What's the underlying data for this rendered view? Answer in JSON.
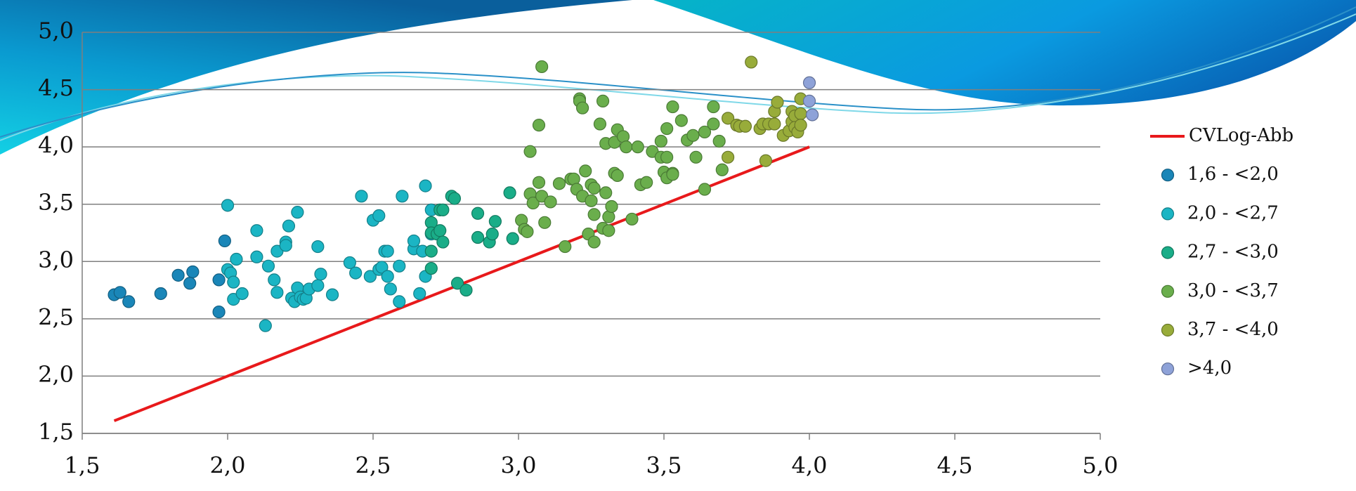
{
  "chart_data": {
    "type": "scatter",
    "xlim": [
      1.5,
      5.0
    ],
    "ylim": [
      1.5,
      5.0
    ],
    "xticks": [
      {
        "value": 1.5,
        "label": "1,5"
      },
      {
        "value": 2.0,
        "label": "2,0"
      },
      {
        "value": 2.5,
        "label": "2,5"
      },
      {
        "value": 3.0,
        "label": "3,0"
      },
      {
        "value": 3.5,
        "label": "3,5"
      },
      {
        "value": 4.0,
        "label": "4,0"
      },
      {
        "value": 4.5,
        "label": "4,5"
      },
      {
        "value": 5.0,
        "label": "5,0"
      }
    ],
    "yticks": [
      {
        "value": 1.5,
        "label": "1,5"
      },
      {
        "value": 2.0,
        "label": "2,0"
      },
      {
        "value": 2.5,
        "label": "2,5"
      },
      {
        "value": 3.0,
        "label": "3,0"
      },
      {
        "value": 3.5,
        "label": "3,5"
      },
      {
        "value": 4.0,
        "label": "4,0"
      },
      {
        "value": 4.5,
        "label": "4,5"
      },
      {
        "value": 5.0,
        "label": "5,0"
      }
    ],
    "grid": true,
    "legend": "right",
    "series": [
      {
        "name": "CVLog-Abb",
        "type": "line",
        "color": "#e8191b",
        "x": [
          1.61,
          4.0
        ],
        "values": [
          1.61,
          4.0
        ]
      },
      {
        "name": "1,6 - <2,0",
        "color": "#1a86b8",
        "x": [
          1.61,
          1.63,
          1.66,
          1.77,
          1.83,
          1.88,
          1.87,
          1.97,
          1.97,
          1.99
        ],
        "values": [
          2.71,
          2.73,
          2.65,
          2.72,
          2.88,
          2.91,
          2.81,
          2.84,
          2.56,
          3.18
        ]
      },
      {
        "name": "2,0 - <2,7",
        "color": "#1bb5c4",
        "x": [
          2.0,
          2.0,
          2.01,
          2.03,
          2.02,
          2.02,
          2.05,
          2.1,
          2.1,
          2.13,
          2.14,
          2.16,
          2.17,
          2.17,
          2.2,
          2.2,
          2.21,
          2.22,
          2.24,
          2.24,
          2.23,
          2.25,
          2.26,
          2.27,
          2.28,
          2.31,
          2.31,
          2.32,
          2.36,
          2.42,
          2.44,
          2.46,
          2.49,
          2.5,
          2.52,
          2.52,
          2.53,
          2.54,
          2.55,
          2.55,
          2.56,
          2.59,
          2.59,
          2.6,
          2.64,
          2.64,
          2.66,
          2.67,
          2.68,
          2.68,
          2.7,
          2.7
        ],
        "values": [
          3.49,
          2.93,
          2.9,
          3.02,
          2.82,
          2.67,
          2.72,
          3.27,
          3.04,
          2.44,
          2.96,
          2.84,
          3.09,
          2.73,
          3.17,
          3.14,
          3.31,
          2.68,
          2.77,
          3.43,
          2.65,
          2.69,
          2.67,
          2.68,
          2.76,
          2.79,
          3.13,
          2.89,
          2.71,
          2.99,
          2.9,
          3.57,
          2.87,
          3.36,
          3.4,
          2.93,
          2.95,
          3.09,
          3.09,
          2.87,
          2.76,
          2.65,
          2.96,
          3.57,
          3.11,
          3.18,
          2.72,
          3.09,
          2.87,
          3.66,
          3.45,
          3.24
        ]
      },
      {
        "name": "2,7 - <3,0",
        "color": "#1aad88",
        "x": [
          2.7,
          2.7,
          2.72,
          2.73,
          2.73,
          2.74,
          2.74,
          2.77,
          2.78,
          2.7,
          2.7,
          2.79,
          2.82,
          2.86,
          2.86,
          2.9,
          2.91,
          2.92,
          2.97,
          2.98
        ],
        "values": [
          3.34,
          3.25,
          3.24,
          3.27,
          3.45,
          3.45,
          3.17,
          3.57,
          3.55,
          3.09,
          2.94,
          2.81,
          2.75,
          3.42,
          3.21,
          3.17,
          3.24,
          3.35,
          3.6,
          3.2
        ]
      },
      {
        "name": "3,0 - <3,7",
        "color": "#6aae4c",
        "x": [
          3.01,
          3.02,
          3.03,
          3.04,
          3.04,
          3.05,
          3.08,
          3.07,
          3.07,
          3.08,
          3.09,
          3.11,
          3.14,
          3.16,
          3.18,
          3.19,
          3.2,
          3.21,
          3.21,
          3.22,
          3.22,
          3.23,
          3.24,
          3.25,
          3.26,
          3.25,
          3.26,
          3.26,
          3.28,
          3.29,
          3.29,
          3.3,
          3.3,
          3.31,
          3.31,
          3.32,
          3.33,
          3.33,
          3.34,
          3.34,
          3.36,
          3.37,
          3.39,
          3.41,
          3.42,
          3.44,
          3.46,
          3.49,
          3.49,
          3.5,
          3.51,
          3.51,
          3.51,
          3.53,
          3.53,
          3.53,
          3.56,
          3.58,
          3.6,
          3.61,
          3.64,
          3.64,
          3.67,
          3.67,
          3.69,
          3.7
        ],
        "values": [
          3.36,
          3.28,
          3.26,
          3.96,
          3.59,
          3.51,
          4.7,
          4.19,
          3.69,
          3.57,
          3.34,
          3.52,
          3.68,
          3.13,
          3.72,
          3.72,
          3.63,
          4.42,
          4.4,
          4.34,
          3.57,
          3.79,
          3.24,
          3.67,
          3.64,
          3.53,
          3.17,
          3.41,
          4.2,
          4.4,
          3.29,
          3.6,
          4.03,
          3.39,
          3.27,
          3.48,
          4.04,
          3.77,
          4.15,
          3.75,
          4.09,
          4.0,
          3.37,
          4.0,
          3.67,
          3.69,
          3.96,
          3.91,
          4.05,
          3.78,
          3.73,
          4.16,
          3.91,
          3.77,
          4.35,
          3.76,
          4.23,
          4.06,
          4.1,
          3.91,
          3.63,
          4.13,
          4.2,
          4.35,
          4.05,
          3.8
        ]
      },
      {
        "name": "3,7 - <4,0",
        "color": "#98ac3a",
        "x": [
          3.72,
          3.72,
          3.75,
          3.76,
          3.78,
          3.8,
          3.83,
          3.84,
          3.85,
          3.86,
          3.88,
          3.88,
          3.89,
          3.91,
          3.93,
          3.94,
          3.94,
          3.95,
          3.95,
          3.97,
          3.97,
          3.96,
          3.97
        ],
        "values": [
          3.91,
          4.25,
          4.19,
          4.18,
          4.18,
          4.74,
          4.16,
          4.2,
          3.88,
          4.2,
          4.2,
          4.31,
          4.39,
          4.1,
          4.14,
          4.22,
          4.31,
          4.27,
          4.17,
          4.42,
          4.29,
          4.13,
          4.19
        ]
      },
      {
        "name": ">4,0",
        "color": "#8ea2d8",
        "x": [
          4.0,
          4.0,
          4.01
        ],
        "values": [
          4.56,
          4.4,
          4.28
        ]
      }
    ]
  }
}
